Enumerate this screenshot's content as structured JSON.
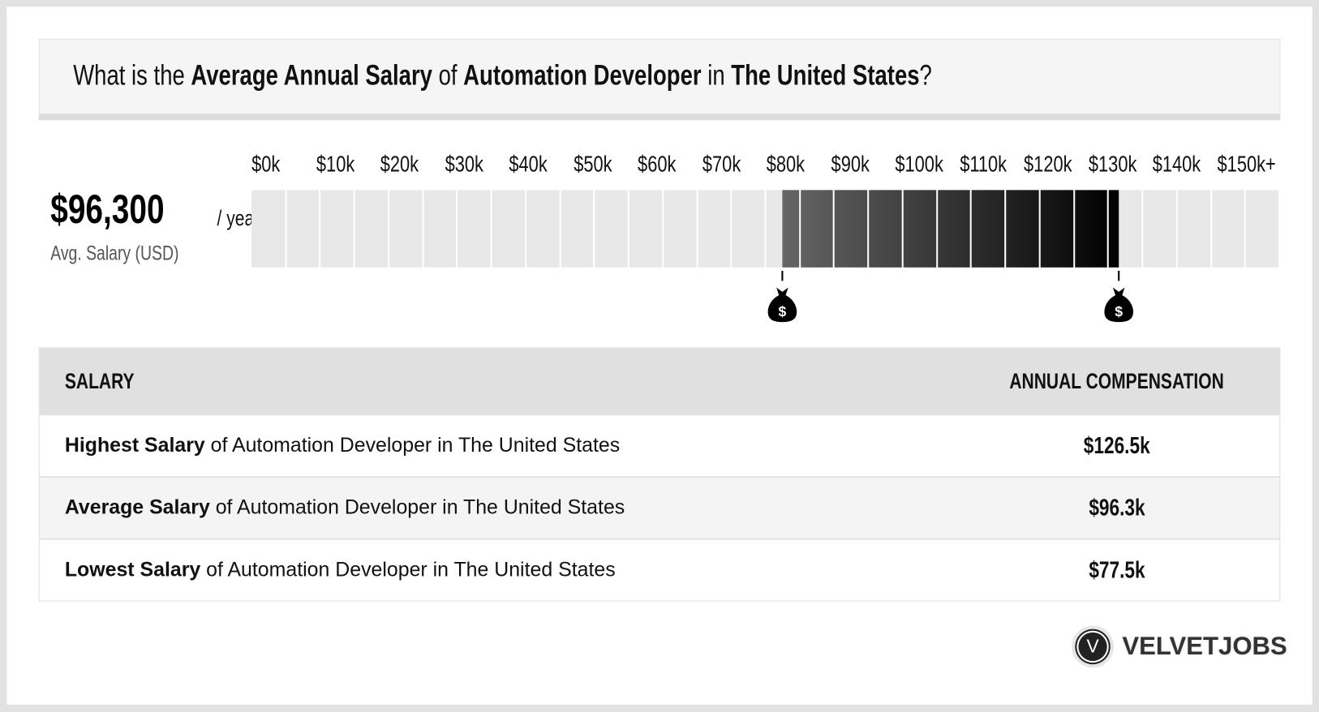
{
  "title": {
    "p1": "What is the ",
    "b1": "Average Annual Salary",
    "p2": " of ",
    "b2": "Automation Developer",
    "p3": " in ",
    "b3": "The United States",
    "p4": "?"
  },
  "summary": {
    "value": "$96,300",
    "per": "/ year",
    "label": "Avg. Salary (USD)"
  },
  "chart_data": {
    "type": "range-bar",
    "tick_labels": [
      "$0k",
      "$10k",
      "$20k",
      "$30k",
      "$40k",
      "$50k",
      "$60k",
      "$70k",
      "$80k",
      "$90k",
      "$100k",
      "$110k",
      "$120k",
      "$130k",
      "$140k",
      "$150k+"
    ],
    "xlim": [
      0,
      150
    ],
    "unit": "$k",
    "segment_step": 5,
    "range": {
      "low": 77.5,
      "high": 126.5
    },
    "average": 96.3,
    "colors": {
      "empty": "#e8e8e8",
      "fill_start": "#666666",
      "fill_end": "#000000"
    }
  },
  "table": {
    "headers": [
      "SALARY",
      "ANNUAL COMPENSATION"
    ],
    "rows": [
      {
        "bold": "Highest Salary",
        "rest": " of Automation Developer in The United States",
        "value": "$126.5k"
      },
      {
        "bold": "Average Salary",
        "rest": " of Automation Developer in The United States",
        "value": "$96.3k"
      },
      {
        "bold": "Lowest Salary",
        "rest": " of Automation Developer in The United States",
        "value": "$77.5k"
      }
    ]
  },
  "logo": {
    "letter": "V",
    "text": "VELVETJOBS"
  }
}
